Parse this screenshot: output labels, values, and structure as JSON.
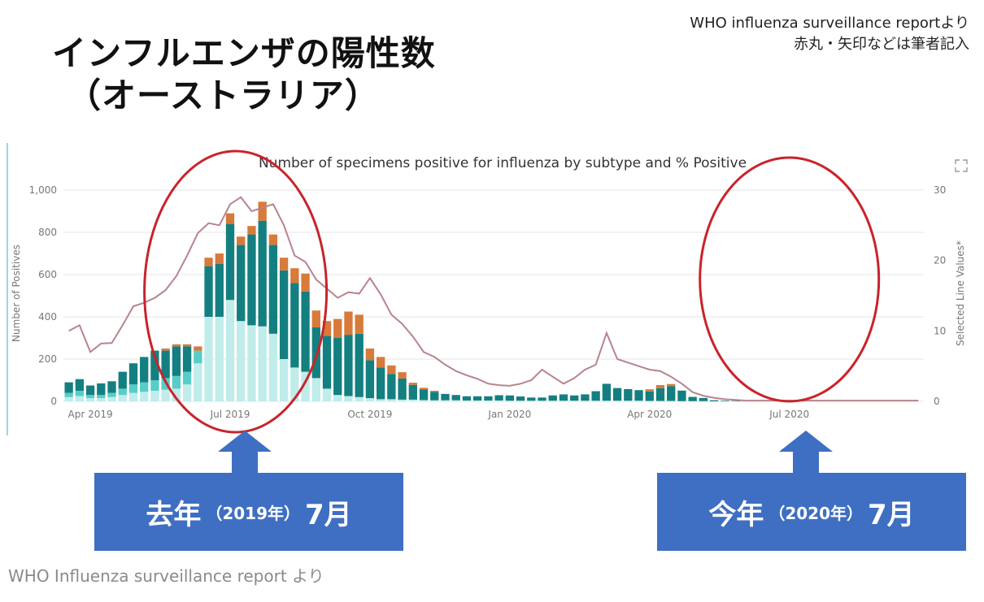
{
  "slide": {
    "title_line1": "インフルエンザの陽性数",
    "title_line2": "（オーストラリア）",
    "source_line1": "WHO influenza surveillance reportより",
    "source_line2": "赤丸・矢印などは筆者記入",
    "caption": "WHO Influenza surveillance report より"
  },
  "callouts": {
    "last_year": {
      "big1": "去年",
      "small": "（2019年）",
      "big2": "7月"
    },
    "this_year": {
      "big1": "今年",
      "small": "（2020年）",
      "big2": "7月"
    }
  },
  "colors": {
    "seg1": "#c0ecea",
    "seg2": "#57cdc8",
    "seg3": "#147f80",
    "seg4": "#d77a3a",
    "line": "#b8848b",
    "circle": "#c8242b",
    "callout": "#3f6fc2",
    "grid": "#e6e6e6"
  },
  "icons": {
    "expand": "expand-icon"
  },
  "chart_data": {
    "type": "bar",
    "title": "Number of specimens positive for influenza by subtype and % Positive",
    "ylabel": "Number of Positives",
    "y2label": "Selected Line Values*",
    "ylim": [
      0,
      1000
    ],
    "y2lim": [
      0,
      30
    ],
    "yticks": [
      "0",
      "200",
      "400",
      "600",
      "800",
      "1,000"
    ],
    "y2ticks": [
      "0",
      "10",
      "20",
      "30"
    ],
    "xticks": [
      {
        "label": "Apr 2019",
        "index": 2
      },
      {
        "label": "Jul 2019",
        "index": 15
      },
      {
        "label": "Oct 2019",
        "index": 28
      },
      {
        "label": "Jan 2020",
        "index": 41
      },
      {
        "label": "Apr 2020",
        "index": 54
      },
      {
        "label": "Jul 2020",
        "index": 67
      }
    ],
    "x": [
      "2019-03-09",
      "2019-03-16",
      "2019-03-23",
      "2019-03-30",
      "2019-04-06",
      "2019-04-13",
      "2019-04-20",
      "2019-04-27",
      "2019-05-04",
      "2019-05-11",
      "2019-05-18",
      "2019-05-25",
      "2019-06-01",
      "2019-06-08",
      "2019-06-15",
      "2019-06-22",
      "2019-06-29",
      "2019-07-06",
      "2019-07-13",
      "2019-07-20",
      "2019-07-27",
      "2019-08-03",
      "2019-08-10",
      "2019-08-17",
      "2019-08-24",
      "2019-08-31",
      "2019-09-07",
      "2019-09-14",
      "2019-09-21",
      "2019-09-28",
      "2019-10-05",
      "2019-10-12",
      "2019-10-19",
      "2019-10-26",
      "2019-11-02",
      "2019-11-09",
      "2019-11-16",
      "2019-11-23",
      "2019-11-30",
      "2019-12-07",
      "2019-12-14",
      "2019-12-21",
      "2019-12-28",
      "2020-01-04",
      "2020-01-11",
      "2020-01-18",
      "2020-01-25",
      "2020-02-01",
      "2020-02-08",
      "2020-02-15",
      "2020-02-22",
      "2020-02-29",
      "2020-03-07",
      "2020-03-14",
      "2020-03-21",
      "2020-03-28",
      "2020-04-04",
      "2020-04-11",
      "2020-04-18",
      "2020-04-25",
      "2020-05-02",
      "2020-05-09",
      "2020-05-16",
      "2020-05-23",
      "2020-05-30",
      "2020-06-06",
      "2020-06-13",
      "2020-06-20",
      "2020-06-27",
      "2020-07-04",
      "2020-07-11",
      "2020-07-18",
      "2020-07-25",
      "2020-08-01",
      "2020-08-08",
      "2020-08-15",
      "2020-08-22",
      "2020-08-29",
      "2020-09-05",
      "2020-09-12"
    ],
    "series": [
      {
        "values": [
          20,
          25,
          15,
          15,
          20,
          30,
          40,
          45,
          50,
          55,
          60,
          80,
          180,
          400,
          400,
          480,
          380,
          360,
          355,
          320,
          200,
          160,
          140,
          110,
          60,
          30,
          25,
          20,
          15,
          10,
          10,
          8,
          8,
          6,
          5,
          5,
          5,
          4,
          4,
          4,
          4,
          3,
          3,
          3,
          3,
          3,
          3,
          3,
          3,
          3,
          3,
          3,
          3,
          3,
          2,
          2,
          2,
          1,
          1,
          1,
          0,
          0,
          0,
          0,
          0,
          0,
          0,
          0,
          0,
          0,
          0,
          0,
          0,
          0,
          0,
          0,
          0,
          0,
          0,
          0
        ]
      },
      {
        "values": [
          20,
          25,
          15,
          15,
          20,
          30,
          40,
          45,
          50,
          55,
          60,
          60,
          60,
          0,
          0,
          0,
          0,
          0,
          0,
          0,
          0,
          0,
          0,
          0,
          0,
          0,
          0,
          0,
          0,
          0,
          0,
          0,
          0,
          0,
          0,
          0,
          0,
          0,
          0,
          0,
          0,
          0,
          0,
          0,
          0,
          0,
          0,
          0,
          0,
          0,
          0,
          0,
          0,
          0,
          0,
          0,
          0,
          0,
          0,
          0,
          0,
          0,
          0,
          0,
          0,
          0,
          0,
          0,
          0,
          0,
          0,
          0,
          0,
          0,
          0,
          0,
          0,
          0,
          0,
          0
        ]
      },
      {
        "values": [
          50,
          55,
          45,
          55,
          55,
          80,
          100,
          120,
          140,
          130,
          140,
          120,
          0,
          240,
          250,
          360,
          360,
          430,
          500,
          420,
          420,
          400,
          380,
          240,
          250,
          270,
          290,
          300,
          180,
          150,
          120,
          100,
          70,
          50,
          40,
          30,
          25,
          20,
          20,
          20,
          25,
          25,
          20,
          15,
          15,
          25,
          30,
          25,
          30,
          45,
          80,
          60,
          55,
          50,
          45,
          60,
          70,
          50,
          20,
          15,
          5,
          3,
          2,
          0,
          0,
          0,
          0,
          0,
          0,
          0,
          0,
          0,
          0,
          0,
          0,
          0,
          0,
          0,
          0,
          0
        ]
      },
      {
        "values": [
          0,
          0,
          0,
          0,
          0,
          0,
          0,
          0,
          0,
          10,
          10,
          10,
          20,
          40,
          50,
          50,
          40,
          40,
          90,
          50,
          60,
          70,
          85,
          80,
          70,
          90,
          110,
          90,
          55,
          50,
          40,
          30,
          10,
          8,
          5,
          0,
          0,
          0,
          0,
          0,
          0,
          0,
          0,
          0,
          0,
          0,
          0,
          0,
          0,
          0,
          0,
          0,
          0,
          0,
          10,
          15,
          10,
          0,
          0,
          0,
          0,
          0,
          0,
          0,
          0,
          0,
          0,
          0,
          0,
          0,
          0,
          0,
          0,
          0,
          0,
          0,
          0,
          0,
          0,
          0
        ]
      },
      {
        "name": "% Positive",
        "axis": "right",
        "values": [
          10,
          10.8,
          7,
          8.2,
          8.3,
          10.8,
          13.5,
          14,
          14.7,
          15.8,
          17.8,
          20.7,
          23.9,
          25.3,
          25,
          28,
          29,
          27,
          27.5,
          28,
          25,
          20.7,
          19.8,
          17.3,
          16,
          14.7,
          15.5,
          15.3,
          17.5,
          15.2,
          12.3,
          11,
          9.2,
          7,
          6.3,
          5.2,
          4.3,
          3.7,
          3.2,
          2.5,
          2.3,
          2.2,
          2.5,
          3,
          4.5,
          3.5,
          2.5,
          3.3,
          4.5,
          5.2,
          9.7,
          6,
          5.5,
          5,
          4.5,
          4.3,
          3.5,
          2.5,
          1.3,
          0.8,
          0.5,
          0.3,
          0.2,
          0.1,
          0.1,
          0.1,
          0.1,
          0.1,
          0.1,
          0.1,
          0.1,
          0.1,
          0.1,
          0.1,
          0.1,
          0.1,
          0.1,
          0.1,
          0.1,
          0.1
        ]
      }
    ]
  }
}
